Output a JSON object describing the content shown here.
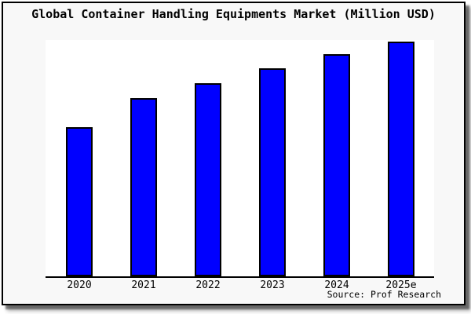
{
  "colors": {
    "bar_fill": "#0000ff",
    "bar_outline": "#000000",
    "frame_border": "#000000",
    "chart_background": "#f8f8f8",
    "plot_background": "#ffffff",
    "text": "#000000"
  },
  "chart_data": {
    "type": "bar",
    "title": "Global Container Handling Equipments Market (Million USD)",
    "categories": [
      "2020",
      "2021",
      "2022",
      "2023",
      "2024",
      "2025e"
    ],
    "values": [
      190,
      227,
      246,
      265,
      283,
      299
    ],
    "values_unit": "pixel bar heights; chart displays no y-axis scale or data labels",
    "xlabel": "",
    "ylabel": "",
    "y_axis_visible": false,
    "gridlines": false,
    "legend": "none",
    "bar_color": "#0000ff",
    "source_note": "Source: Prof Research"
  }
}
